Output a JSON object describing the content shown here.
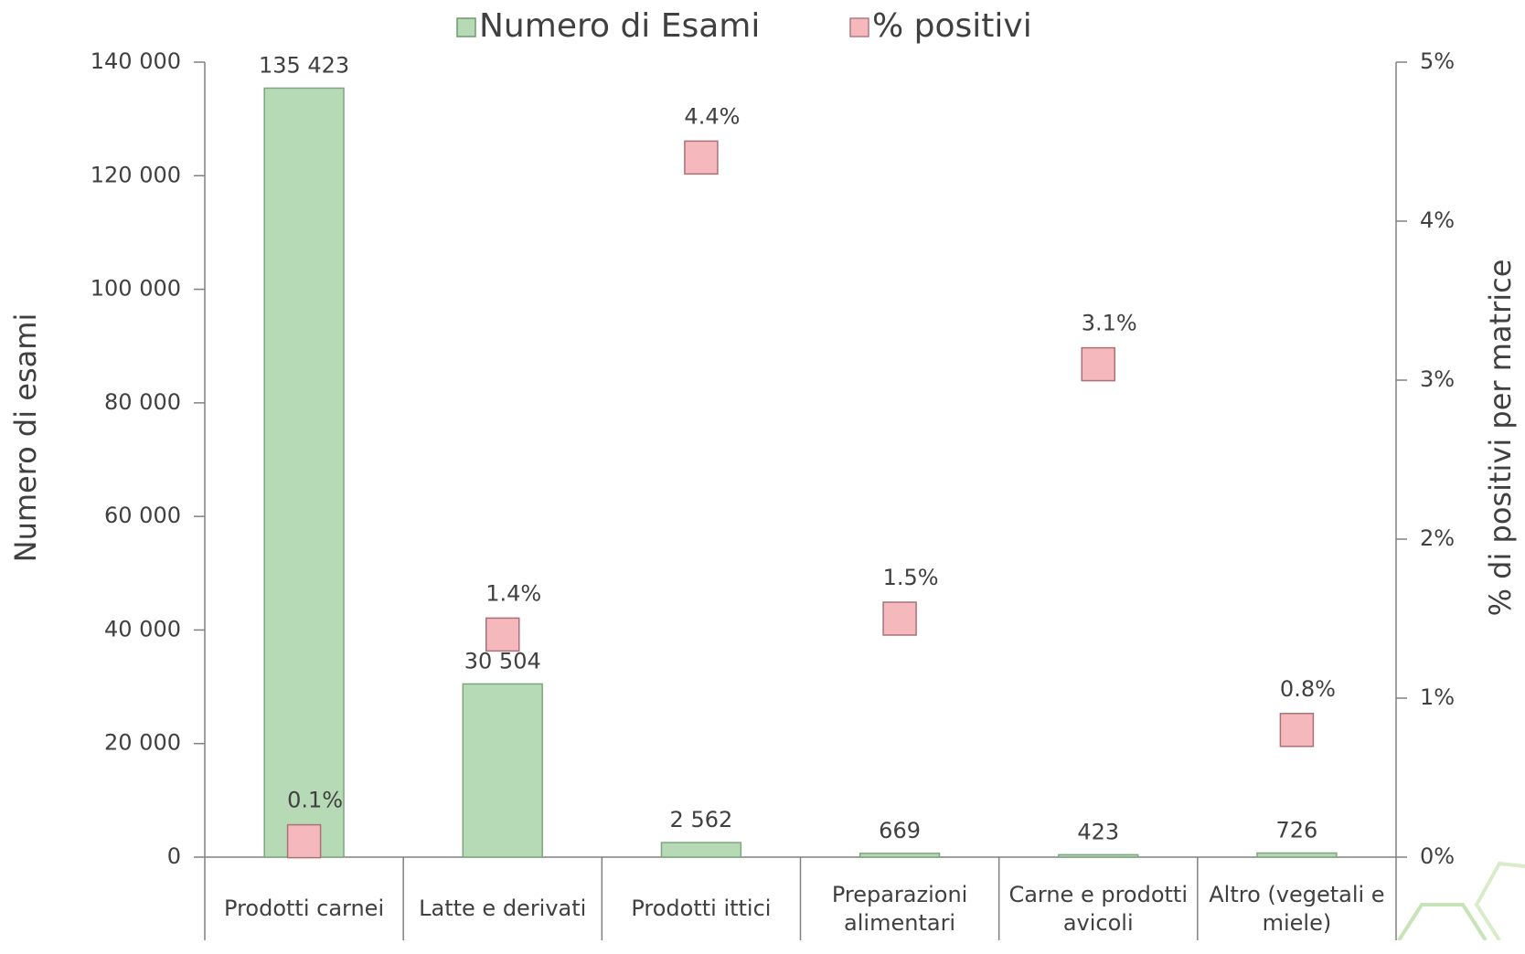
{
  "chart_data": {
    "type": "bar",
    "y_label": "Numero di esami",
    "y2_label": "% di positivi per matrice",
    "categories": [
      "Prodotti carnei",
      "Latte e derivati",
      "Prodotti ittici",
      "Preparazioni alimentari",
      "Carne e prodotti avicoli",
      "Altro (vegetali e miele)"
    ],
    "series": [
      {
        "name": "Numero di Esami",
        "type": "bar",
        "color": "#b6d9b6",
        "values": [
          135423,
          30504,
          2562,
          669,
          423,
          726
        ],
        "value_labels": [
          "135 423",
          "30 504",
          "2 562",
          "669",
          "423",
          "726"
        ]
      },
      {
        "name": "% positivi",
        "type": "scatter",
        "axis": "y2",
        "color": "#f5b9bd",
        "values": [
          0.1,
          1.4,
          4.4,
          1.5,
          3.1,
          0.8
        ],
        "value_labels": [
          "0.1%",
          "1.4%",
          "4.4%",
          "1.5%",
          "3.1%",
          "0.8%"
        ]
      }
    ],
    "ylim": [
      0,
      140000
    ],
    "yticks": [
      0,
      {
        "value": 20000,
        "label": "20 000"
      },
      {
        "value": 40000,
        "label": "40 000"
      },
      {
        "value": 60000,
        "label": "60 000"
      },
      {
        "value": 80000,
        "label": "80 000"
      },
      {
        "value": 100000,
        "label": "100 000"
      },
      {
        "value": 120000,
        "label": "120 000"
      },
      {
        "value": 140000,
        "label": "140 000"
      }
    ],
    "y2lim": [
      0,
      5
    ],
    "y2ticks": [
      {
        "value": 0,
        "label": "0%"
      },
      {
        "value": 1,
        "label": "1%"
      },
      {
        "value": 2,
        "label": "2%"
      },
      {
        "value": 3,
        "label": "3%"
      },
      {
        "value": 4,
        "label": "4%"
      },
      {
        "value": 5,
        "label": "5%"
      }
    ],
    "legend": "top"
  }
}
